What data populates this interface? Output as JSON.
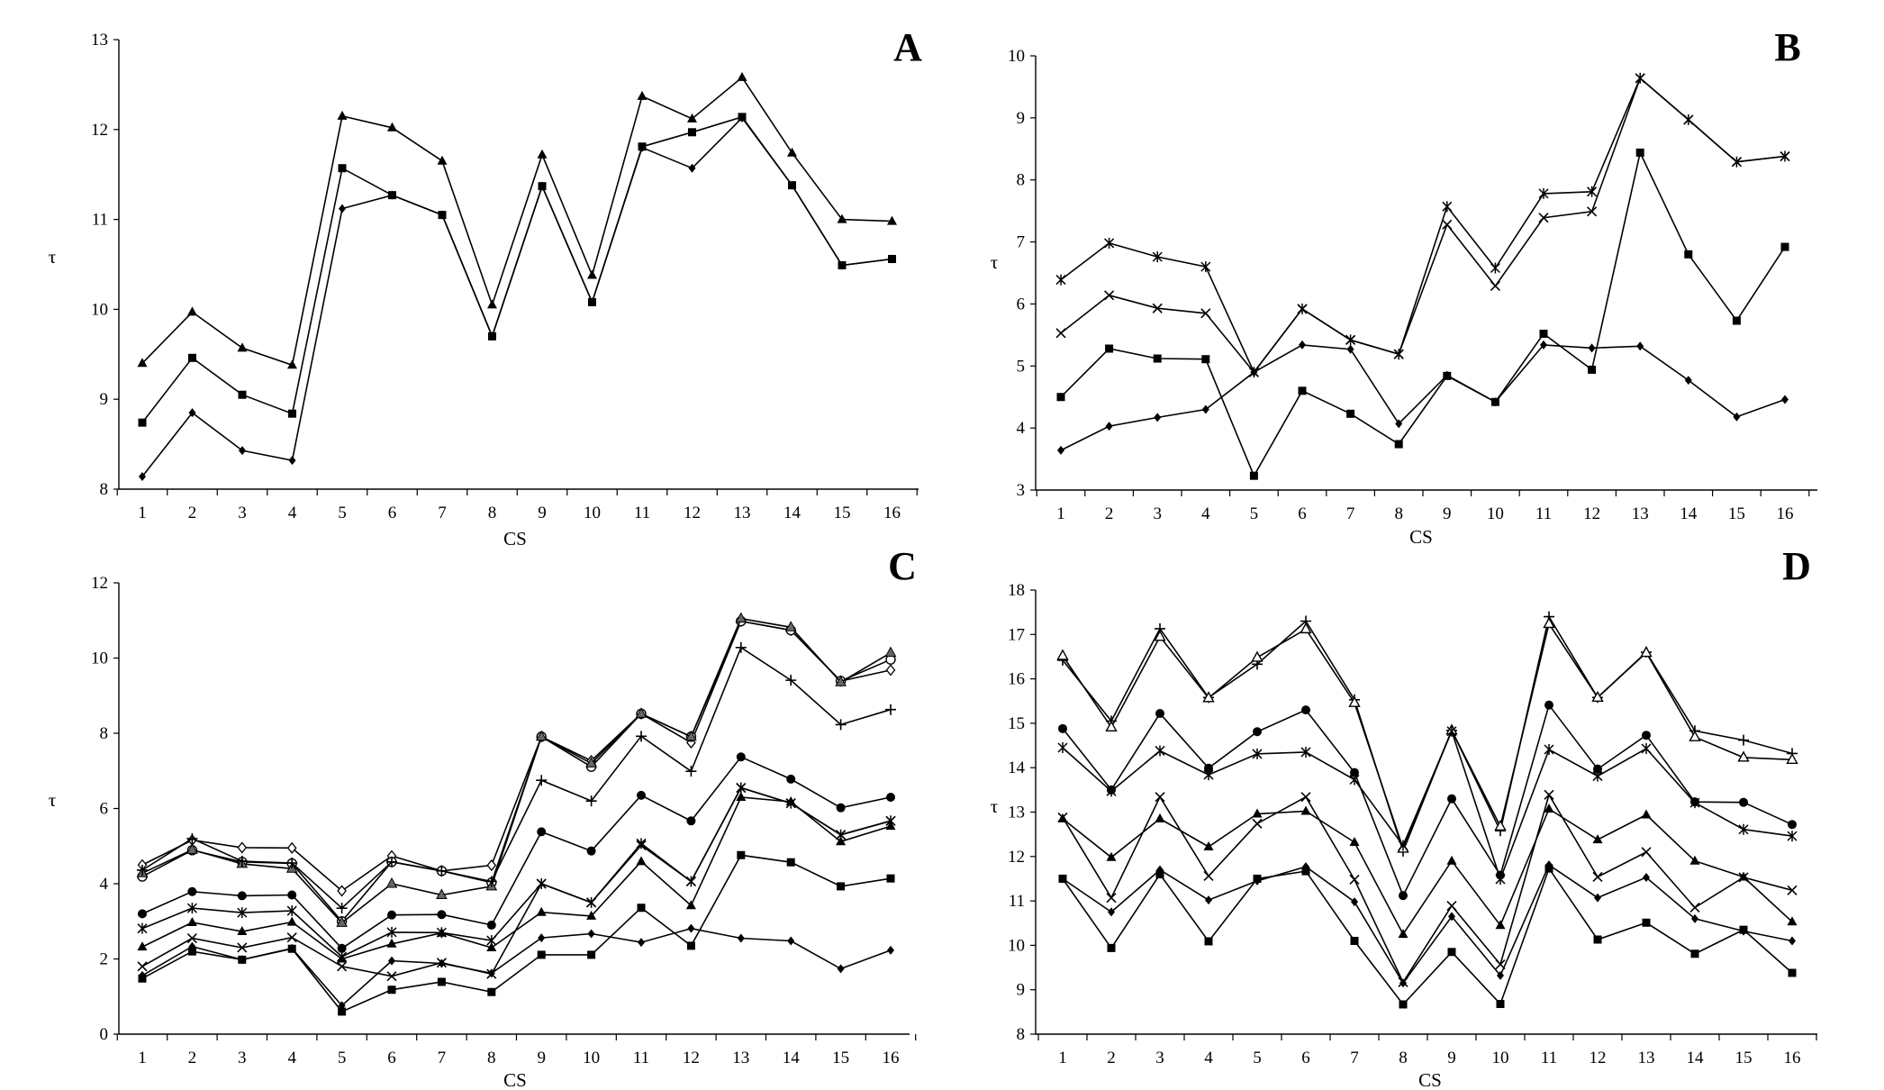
{
  "chart_data": [
    {
      "type": "line",
      "panel_label": "A",
      "xlabel": "CS",
      "ylabel": "τ",
      "categories": [
        "1",
        "2",
        "3",
        "4",
        "5",
        "6",
        "7",
        "8",
        "9",
        "10",
        "11",
        "12",
        "13",
        "14",
        "15",
        "16"
      ],
      "ylim": [
        8,
        13
      ],
      "yticks": [
        8,
        9,
        10,
        11,
        12,
        13
      ],
      "series": [
        {
          "marker": "triangle",
          "values": [
            9.4,
            9.97,
            9.57,
            9.38,
            12.15,
            12.02,
            11.65,
            10.05,
            11.72,
            10.38,
            12.37,
            12.12,
            12.58,
            11.74,
            11.0,
            10.98
          ]
        },
        {
          "marker": "square",
          "values": [
            8.74,
            9.46,
            9.05,
            8.84,
            11.57,
            11.27,
            11.05,
            9.7,
            11.37,
            10.08,
            11.81,
            11.97,
            12.14,
            11.38,
            10.49,
            10.56
          ]
        },
        {
          "marker": "diamond",
          "values": [
            8.14,
            8.85,
            8.43,
            8.32,
            11.12,
            11.27,
            11.05,
            9.7,
            11.37,
            10.08,
            11.8,
            11.57,
            12.13,
            11.38,
            10.49,
            10.56
          ]
        }
      ]
    },
    {
      "type": "line",
      "panel_label": "B",
      "xlabel": "CS",
      "ylabel": "τ",
      "categories": [
        "1",
        "2",
        "3",
        "4",
        "5",
        "6",
        "7",
        "8",
        "9",
        "10",
        "11",
        "12",
        "13",
        "14",
        "15",
        "16"
      ],
      "ylim": [
        3,
        10
      ],
      "yticks": [
        3,
        4,
        5,
        6,
        7,
        8,
        9,
        10
      ],
      "series": [
        {
          "marker": "star",
          "values": [
            6.39,
            6.98,
            6.76,
            6.6,
            4.9,
            5.92,
            5.42,
            5.19,
            7.57,
            6.58,
            7.78,
            7.81,
            9.64,
            8.97,
            8.29,
            8.38
          ]
        },
        {
          "marker": "x",
          "values": [
            5.53,
            6.14,
            5.93,
            5.85,
            4.9,
            5.92,
            5.42,
            5.19,
            7.28,
            6.29,
            7.39,
            7.49,
            9.64,
            8.97,
            8.29,
            8.38
          ]
        },
        {
          "marker": "square",
          "values": [
            4.5,
            5.28,
            5.12,
            5.11,
            3.23,
            4.6,
            4.23,
            3.74,
            4.84,
            4.42,
            5.52,
            4.94,
            8.44,
            6.8,
            5.73,
            6.92
          ]
        },
        {
          "marker": "diamond",
          "values": [
            3.64,
            4.03,
            4.17,
            4.3,
            4.9,
            5.34,
            5.27,
            4.07,
            4.85,
            4.42,
            5.34,
            5.29,
            5.32,
            4.77,
            4.18,
            4.46
          ]
        }
      ]
    },
    {
      "type": "line",
      "panel_label": "C",
      "xlabel": "CS",
      "ylabel": "τ",
      "categories": [
        "1",
        "2",
        "3",
        "4",
        "5",
        "6",
        "7",
        "8",
        "9",
        "10",
        "11",
        "12",
        "13",
        "14",
        "15",
        "16"
      ],
      "ylim": [
        0,
        12
      ],
      "yticks": [
        0,
        2,
        4,
        6,
        8,
        10,
        12
      ],
      "series": [
        {
          "marker": "open-diamond",
          "values": [
            4.5,
            5.16,
            4.96,
            4.95,
            3.81,
            4.74,
            4.34,
            4.49,
            7.91,
            7.27,
            8.52,
            7.75,
            10.98,
            10.74,
            9.39,
            9.68
          ]
        },
        {
          "marker": "open-circle",
          "values": [
            4.19,
            4.89,
            4.58,
            4.54,
            3.0,
            4.58,
            4.34,
            4.03,
            7.91,
            7.11,
            8.52,
            7.91,
            10.98,
            10.74,
            9.39,
            9.96
          ]
        },
        {
          "marker": "triangle-light",
          "values": [
            4.28,
            4.9,
            4.53,
            4.4,
            2.96,
            4.0,
            3.7,
            3.93,
            7.91,
            7.2,
            8.52,
            7.91,
            11.05,
            10.82,
            9.36,
            10.14
          ]
        },
        {
          "marker": "plus",
          "values": [
            4.36,
            5.2,
            4.6,
            4.55,
            3.35,
            4.58,
            4.34,
            4.06,
            6.75,
            6.2,
            7.92,
            6.99,
            10.28,
            9.41,
            8.23,
            8.63
          ]
        },
        {
          "marker": "circle",
          "values": [
            3.2,
            3.79,
            3.68,
            3.7,
            2.28,
            3.17,
            3.18,
            2.9,
            5.38,
            4.87,
            6.35,
            5.67,
            7.37,
            6.78,
            6.02,
            6.3
          ]
        },
        {
          "marker": "star",
          "values": [
            2.81,
            3.35,
            3.23,
            3.28,
            2.06,
            2.71,
            2.7,
            2.49,
            4.0,
            3.5,
            5.07,
            4.06,
            6.55,
            6.14,
            5.3,
            5.67
          ]
        },
        {
          "marker": "triangle",
          "values": [
            2.32,
            2.97,
            2.73,
            2.98,
            2.0,
            2.4,
            2.69,
            2.3,
            3.24,
            3.14,
            4.59,
            3.42,
            6.3,
            6.18,
            5.12,
            5.53
          ]
        },
        {
          "marker": "x",
          "values": [
            1.8,
            2.55,
            2.3,
            2.57,
            1.8,
            1.54,
            1.9,
            1.6,
            4.0,
            3.5,
            5.02,
            4.06,
            6.55,
            6.14,
            5.3,
            5.67
          ]
        },
        {
          "marker": "square",
          "values": [
            1.48,
            2.2,
            1.98,
            2.27,
            0.6,
            1.18,
            1.39,
            1.12,
            2.11,
            2.11,
            3.36,
            2.35,
            4.76,
            4.57,
            3.93,
            4.14
          ]
        },
        {
          "marker": "diamond",
          "values": [
            1.56,
            2.33,
            1.98,
            2.28,
            0.76,
            1.95,
            1.88,
            1.62,
            2.56,
            2.67,
            2.44,
            2.81,
            2.55,
            2.48,
            1.74,
            2.23
          ]
        }
      ]
    },
    {
      "type": "line",
      "panel_label": "D",
      "xlabel": "CS",
      "ylabel": "τ",
      "categories": [
        "1",
        "2",
        "3",
        "4",
        "5",
        "6",
        "7",
        "8",
        "9",
        "10",
        "11",
        "12",
        "13",
        "14",
        "15",
        "16"
      ],
      "ylim": [
        8,
        18
      ],
      "yticks": [
        8,
        9,
        10,
        11,
        12,
        13,
        14,
        15,
        16,
        17,
        18
      ],
      "series": [
        {
          "marker": "plus",
          "values": [
            16.42,
            15.05,
            17.13,
            15.58,
            16.33,
            17.3,
            15.53,
            12.12,
            14.84,
            12.58,
            17.4,
            15.58,
            16.6,
            14.83,
            14.62,
            14.32
          ]
        },
        {
          "marker": "open-triangle",
          "values": [
            16.52,
            14.91,
            16.95,
            15.57,
            16.48,
            17.12,
            15.46,
            12.18,
            14.84,
            12.68,
            17.24,
            15.58,
            16.59,
            14.69,
            14.23,
            14.18
          ]
        },
        {
          "marker": "circle",
          "values": [
            14.88,
            13.5,
            15.22,
            13.99,
            14.81,
            15.3,
            13.89,
            11.12,
            13.3,
            11.58,
            15.41,
            13.97,
            14.73,
            13.23,
            13.22,
            12.72
          ]
        },
        {
          "marker": "star",
          "values": [
            14.45,
            13.47,
            14.38,
            13.84,
            14.31,
            14.35,
            13.73,
            12.25,
            14.82,
            11.49,
            14.41,
            13.81,
            14.43,
            13.21,
            12.61,
            12.46
          ]
        },
        {
          "marker": "triangle",
          "values": [
            12.85,
            11.98,
            12.85,
            12.22,
            12.96,
            13.02,
            12.32,
            10.25,
            11.9,
            10.45,
            13.07,
            12.38,
            12.94,
            11.9,
            11.54,
            10.53
          ]
        },
        {
          "marker": "x",
          "values": [
            12.88,
            11.07,
            13.34,
            11.56,
            12.74,
            13.34,
            11.48,
            9.17,
            10.89,
            9.57,
            13.39,
            11.54,
            12.1,
            10.85,
            11.53,
            11.24
          ]
        },
        {
          "marker": "diamond",
          "values": [
            11.5,
            10.75,
            11.7,
            11.02,
            11.45,
            11.77,
            10.98,
            9.15,
            10.65,
            9.32,
            11.81,
            11.07,
            11.53,
            10.6,
            10.32,
            10.1
          ]
        },
        {
          "marker": "square",
          "values": [
            11.5,
            9.94,
            11.6,
            10.09,
            11.5,
            11.67,
            10.1,
            8.67,
            9.85,
            8.68,
            11.73,
            10.13,
            10.51,
            9.81,
            10.35,
            9.38
          ]
        }
      ]
    }
  ]
}
